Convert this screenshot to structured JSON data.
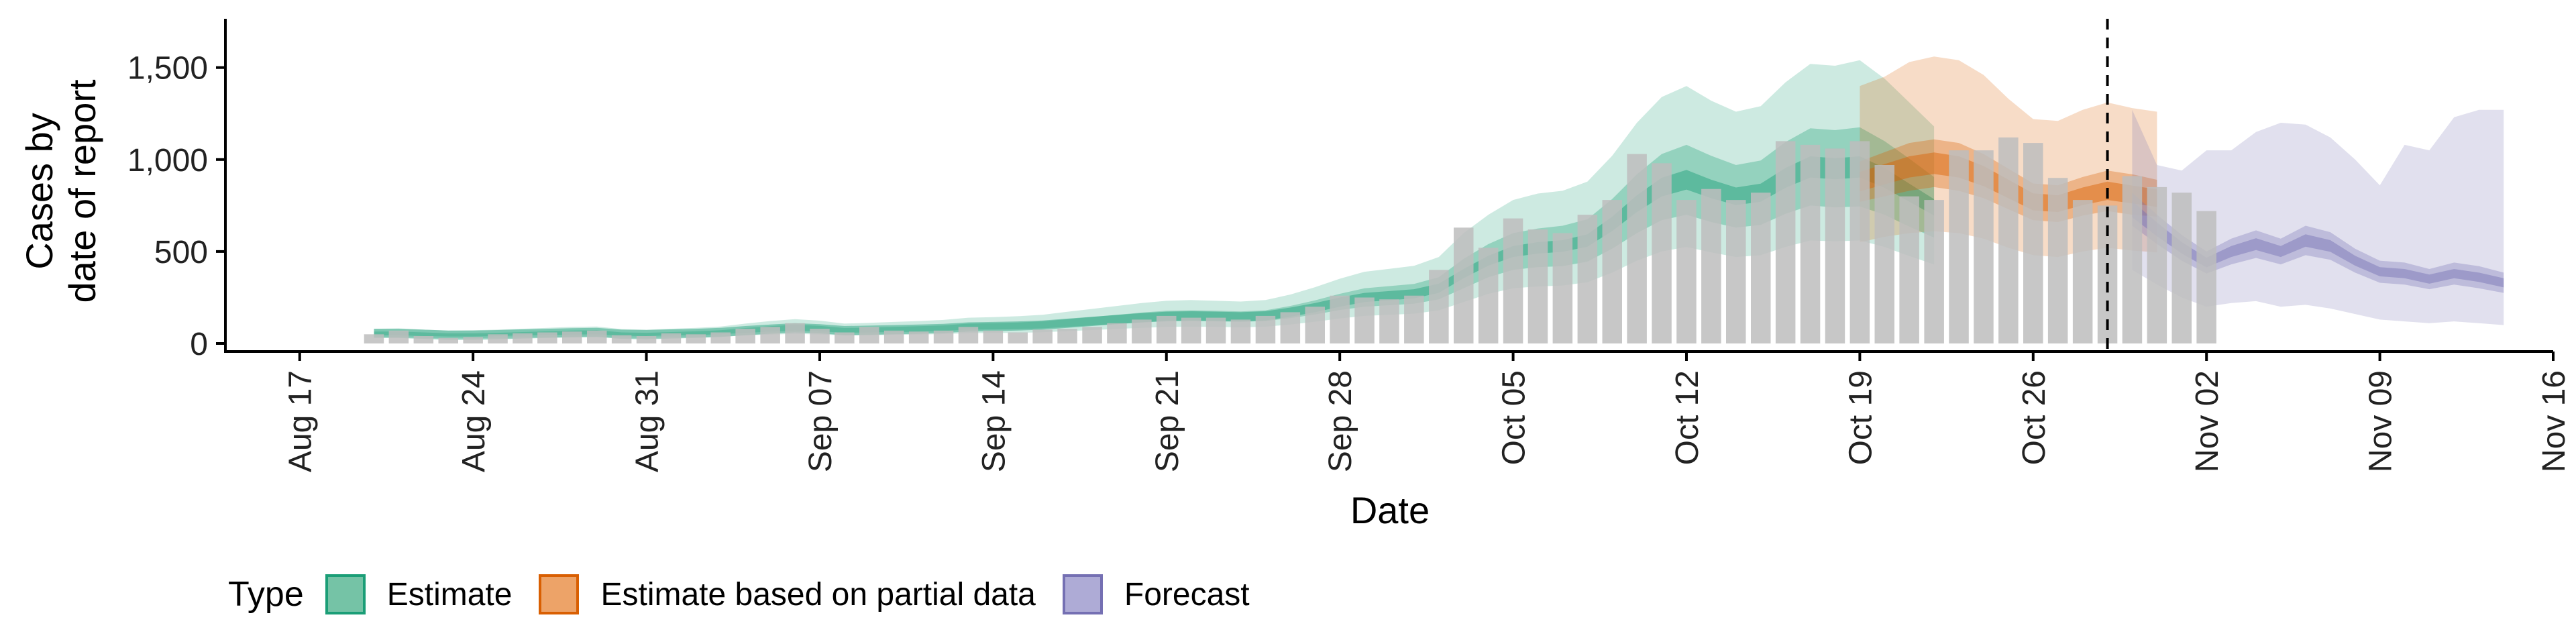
{
  "chart_data": {
    "type": "bar",
    "xlabel": "Date",
    "ylabel_lines": [
      "Cases by",
      "date of report"
    ],
    "ylim": [
      0,
      1800
    ],
    "yticks": [
      0,
      500,
      1000,
      1500
    ],
    "ytick_labels": [
      "0",
      "500",
      "1,000",
      "1,500"
    ],
    "xlim": [
      "2020-08-14",
      "2020-11-16"
    ],
    "xticks": [
      "2020-08-17",
      "2020-08-24",
      "2020-08-31",
      "2020-09-07",
      "2020-09-14",
      "2020-09-21",
      "2020-09-28",
      "2020-10-05",
      "2020-10-12",
      "2020-10-19",
      "2020-10-26",
      "2020-11-02",
      "2020-11-09",
      "2020-11-16"
    ],
    "xtick_labels": [
      "Aug 17",
      "Aug 24",
      "Aug 31",
      "Sep 07",
      "Sep 14",
      "Sep 21",
      "Sep 28",
      "Oct 05",
      "Oct 12",
      "Oct 19",
      "Oct 26",
      "Nov 02",
      "Nov 09",
      "Nov 16"
    ],
    "forecast_start": "2020-10-29",
    "bars": {
      "start_date": "2020-08-20",
      "values": [
        50,
        70,
        40,
        30,
        35,
        50,
        55,
        60,
        65,
        70,
        45,
        40,
        55,
        50,
        60,
        80,
        90,
        110,
        80,
        60,
        90,
        70,
        65,
        70,
        90,
        70,
        60,
        75,
        80,
        90,
        110,
        130,
        150,
        140,
        140,
        130,
        150,
        170,
        200,
        260,
        250,
        240,
        260,
        400,
        630,
        520,
        680,
        620,
        600,
        700,
        780,
        1030,
        980,
        780,
        840,
        780,
        820,
        1100,
        1080,
        1060,
        1100,
        970,
        800,
        780,
        1050,
        1050,
        1120,
        1090,
        900,
        780,
        750,
        910,
        850,
        820,
        720
      ]
    },
    "estimate": {
      "start_date": "2020-08-20",
      "median": [
        55,
        55,
        50,
        45,
        45,
        48,
        52,
        55,
        58,
        60,
        50,
        48,
        52,
        55,
        60,
        70,
        78,
        85,
        80,
        70,
        72,
        75,
        78,
        82,
        90,
        92,
        95,
        100,
        110,
        120,
        130,
        140,
        148,
        150,
        148,
        145,
        150,
        170,
        195,
        225,
        250,
        260,
        270,
        300,
        380,
        450,
        500,
        520,
        530,
        560,
        650,
        760,
        850,
        890,
        840,
        800,
        820,
        900,
        960,
        950,
        960,
        900,
        820,
        740
      ],
      "inner": [
        [
          45,
          65
        ],
        [
          45,
          65
        ],
        [
          40,
          60
        ],
        [
          38,
          55
        ],
        [
          38,
          55
        ],
        [
          40,
          58
        ],
        [
          44,
          62
        ],
        [
          46,
          66
        ],
        [
          48,
          70
        ],
        [
          50,
          72
        ],
        [
          42,
          60
        ],
        [
          40,
          58
        ],
        [
          44,
          62
        ],
        [
          46,
          66
        ],
        [
          50,
          72
        ],
        [
          58,
          84
        ],
        [
          64,
          94
        ],
        [
          70,
          102
        ],
        [
          66,
          96
        ],
        [
          58,
          84
        ],
        [
          60,
          86
        ],
        [
          62,
          90
        ],
        [
          64,
          94
        ],
        [
          68,
          98
        ],
        [
          75,
          108
        ],
        [
          76,
          110
        ],
        [
          78,
          114
        ],
        [
          82,
          120
        ],
        [
          90,
          132
        ],
        [
          98,
          144
        ],
        [
          106,
          156
        ],
        [
          114,
          168
        ],
        [
          120,
          178
        ],
        [
          122,
          180
        ],
        [
          120,
          178
        ],
        [
          118,
          174
        ],
        [
          122,
          180
        ],
        [
          138,
          204
        ],
        [
          158,
          234
        ],
        [
          182,
          270
        ],
        [
          200,
          300
        ],
        [
          208,
          312
        ],
        [
          216,
          324
        ],
        [
          240,
          360
        ],
        [
          300,
          460
        ],
        [
          360,
          540
        ],
        [
          400,
          600
        ],
        [
          415,
          625
        ],
        [
          420,
          640
        ],
        [
          445,
          675
        ],
        [
          515,
          785
        ],
        [
          600,
          920
        ],
        [
          670,
          1030
        ],
        [
          700,
          1080
        ],
        [
          660,
          1020
        ],
        [
          630,
          970
        ],
        [
          645,
          995
        ],
        [
          705,
          1095
        ],
        [
          750,
          1170
        ],
        [
          740,
          1160
        ],
        [
          745,
          1175
        ],
        [
          700,
          1100
        ],
        [
          635,
          1005
        ],
        [
          575,
          905
        ]
      ],
      "outer": [
        [
          35,
          80
        ],
        [
          35,
          82
        ],
        [
          30,
          75
        ],
        [
          28,
          70
        ],
        [
          28,
          72
        ],
        [
          30,
          75
        ],
        [
          33,
          80
        ],
        [
          35,
          85
        ],
        [
          37,
          90
        ],
        [
          38,
          92
        ],
        [
          32,
          78
        ],
        [
          30,
          75
        ],
        [
          33,
          80
        ],
        [
          35,
          85
        ],
        [
          38,
          92
        ],
        [
          44,
          108
        ],
        [
          48,
          122
        ],
        [
          52,
          132
        ],
        [
          49,
          124
        ],
        [
          44,
          108
        ],
        [
          45,
          112
        ],
        [
          47,
          117
        ],
        [
          48,
          122
        ],
        [
          51,
          128
        ],
        [
          56,
          140
        ],
        [
          57,
          143
        ],
        [
          58,
          148
        ],
        [
          61,
          156
        ],
        [
          67,
          172
        ],
        [
          73,
          188
        ],
        [
          79,
          204
        ],
        [
          85,
          220
        ],
        [
          90,
          232
        ],
        [
          91,
          236
        ],
        [
          90,
          232
        ],
        [
          88,
          228
        ],
        [
          91,
          236
        ],
        [
          103,
          266
        ],
        [
          118,
          306
        ],
        [
          136,
          352
        ],
        [
          150,
          390
        ],
        [
          156,
          406
        ],
        [
          162,
          422
        ],
        [
          180,
          470
        ],
        [
          225,
          600
        ],
        [
          270,
          700
        ],
        [
          300,
          780
        ],
        [
          310,
          815
        ],
        [
          315,
          830
        ],
        [
          333,
          880
        ],
        [
          385,
          1020
        ],
        [
          450,
          1200
        ],
        [
          500,
          1340
        ],
        [
          525,
          1400
        ],
        [
          495,
          1320
        ],
        [
          470,
          1260
        ],
        [
          480,
          1290
        ],
        [
          525,
          1420
        ],
        [
          560,
          1520
        ],
        [
          555,
          1510
        ],
        [
          560,
          1540
        ],
        [
          525,
          1440
        ],
        [
          475,
          1310
        ],
        [
          430,
          1180
        ]
      ]
    },
    "partial": {
      "start_date": "2020-10-19",
      "median": [
        880,
        920,
        960,
        980,
        960,
        910,
        840,
        770,
        760,
        800,
        830,
        810,
        790
      ],
      "inner": [
        [
          770,
          990
        ],
        [
          800,
          1040
        ],
        [
          830,
          1090
        ],
        [
          850,
          1110
        ],
        [
          830,
          1090
        ],
        [
          790,
          1030
        ],
        [
          730,
          950
        ],
        [
          670,
          870
        ],
        [
          660,
          860
        ],
        [
          695,
          905
        ],
        [
          720,
          940
        ],
        [
          700,
          920
        ],
        [
          690,
          890
        ]
      ],
      "outer": [
        [
          550,
          1400
        ],
        [
          580,
          1450
        ],
        [
          600,
          1530
        ],
        [
          610,
          1560
        ],
        [
          600,
          1540
        ],
        [
          570,
          1460
        ],
        [
          520,
          1330
        ],
        [
          480,
          1220
        ],
        [
          470,
          1210
        ],
        [
          500,
          1270
        ],
        [
          520,
          1310
        ],
        [
          505,
          1280
        ],
        [
          495,
          1260
        ]
      ]
    },
    "forecast": {
      "start_date": "2020-10-30",
      "median": [
        730,
        620,
        520,
        440,
        500,
        540,
        500,
        560,
        530,
        450,
        390,
        380,
        350,
        380,
        360,
        330
      ],
      "inner": [
        [
          640,
          820
        ],
        [
          540,
          700
        ],
        [
          450,
          590
        ],
        [
          380,
          500
        ],
        [
          430,
          570
        ],
        [
          465,
          615
        ],
        [
          430,
          570
        ],
        [
          480,
          640
        ],
        [
          455,
          605
        ],
        [
          385,
          515
        ],
        [
          330,
          450
        ],
        [
          320,
          440
        ],
        [
          295,
          405
        ],
        [
          320,
          440
        ],
        [
          300,
          420
        ],
        [
          275,
          385
        ]
      ],
      "outer": [
        [
          400,
          1270
        ],
        [
          320,
          970
        ],
        [
          250,
          940
        ],
        [
          200,
          1050
        ],
        [
          220,
          1050
        ],
        [
          230,
          1150
        ],
        [
          200,
          1200
        ],
        [
          210,
          1190
        ],
        [
          190,
          1120
        ],
        [
          160,
          1000
        ],
        [
          130,
          860
        ],
        [
          120,
          1080
        ],
        [
          110,
          1050
        ],
        [
          120,
          1230
        ],
        [
          110,
          1270
        ],
        [
          100,
          1270
        ]
      ]
    }
  },
  "legend": {
    "title": "Type",
    "items": [
      {
        "label": "Estimate",
        "fill": "#75c3a6",
        "border": "#1b9e77"
      },
      {
        "label": "Estimate based on partial data",
        "fill": "#eda368",
        "border": "#d95f02"
      },
      {
        "label": "Forecast",
        "fill": "#aeabd6",
        "border": "#7570b3"
      }
    ]
  },
  "colors": {
    "bar": "#bdbdbd",
    "estimate": "#1b9e77",
    "partial": "#d95f02",
    "forecast": "#7570b3"
  }
}
